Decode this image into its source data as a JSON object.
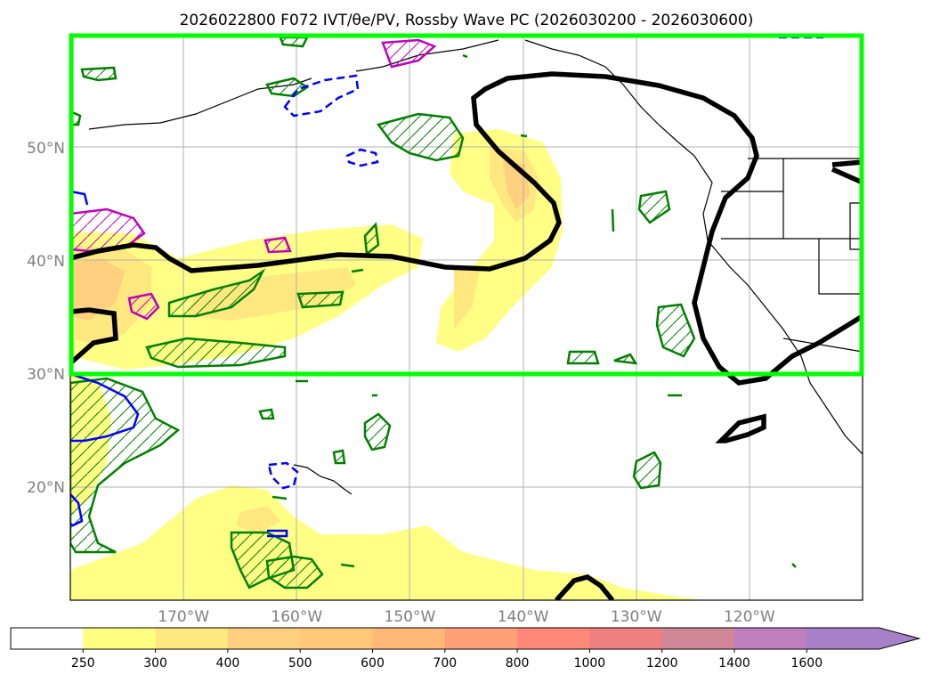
{
  "title": "2026022800 F072 IVT/θe/PV, Rossby Wave PC (2026030200 - 2026030600)",
  "map": {
    "lat_labels": [
      {
        "text": "50°N",
        "lat": 50
      },
      {
        "text": "40°N",
        "lat": 40
      },
      {
        "text": "30°N",
        "lat": 30
      },
      {
        "text": "20°N",
        "lat": 20
      }
    ],
    "lon_labels": [
      {
        "text": "170°W",
        "lon": -170
      },
      {
        "text": "160°W",
        "lon": -160
      },
      {
        "text": "150°W",
        "lon": -150
      },
      {
        "text": "140°W",
        "lon": -140
      },
      {
        "text": "130°W",
        "lon": -130
      },
      {
        "text": "120°W",
        "lon": -120
      }
    ],
    "extent": {
      "lon_min": -180,
      "lon_max": -110,
      "lat_min": 10,
      "lat_max": 60
    },
    "highlight_box": {
      "lon_min": -180,
      "lon_max": -110,
      "lat_min": 30,
      "lat_max": 60,
      "color": "#00ff00"
    },
    "contour_colors": {
      "rossby": "#000000",
      "theta_e": "#008000",
      "pv_pos": "#c000c0",
      "pv_neg": "#0000ff"
    }
  },
  "colorbar": {
    "levels": [
      "250",
      "300",
      "400",
      "500",
      "600",
      "700",
      "800",
      "1000",
      "1200",
      "1400",
      "1600"
    ],
    "colors": [
      "#ffffff",
      "#ffff80",
      "#ffe880",
      "#ffd080",
      "#ffc878",
      "#ffb878",
      "#ffa078",
      "#ff8878",
      "#f08080",
      "#d08898",
      "#c080c0",
      "#a880c8"
    ]
  }
}
